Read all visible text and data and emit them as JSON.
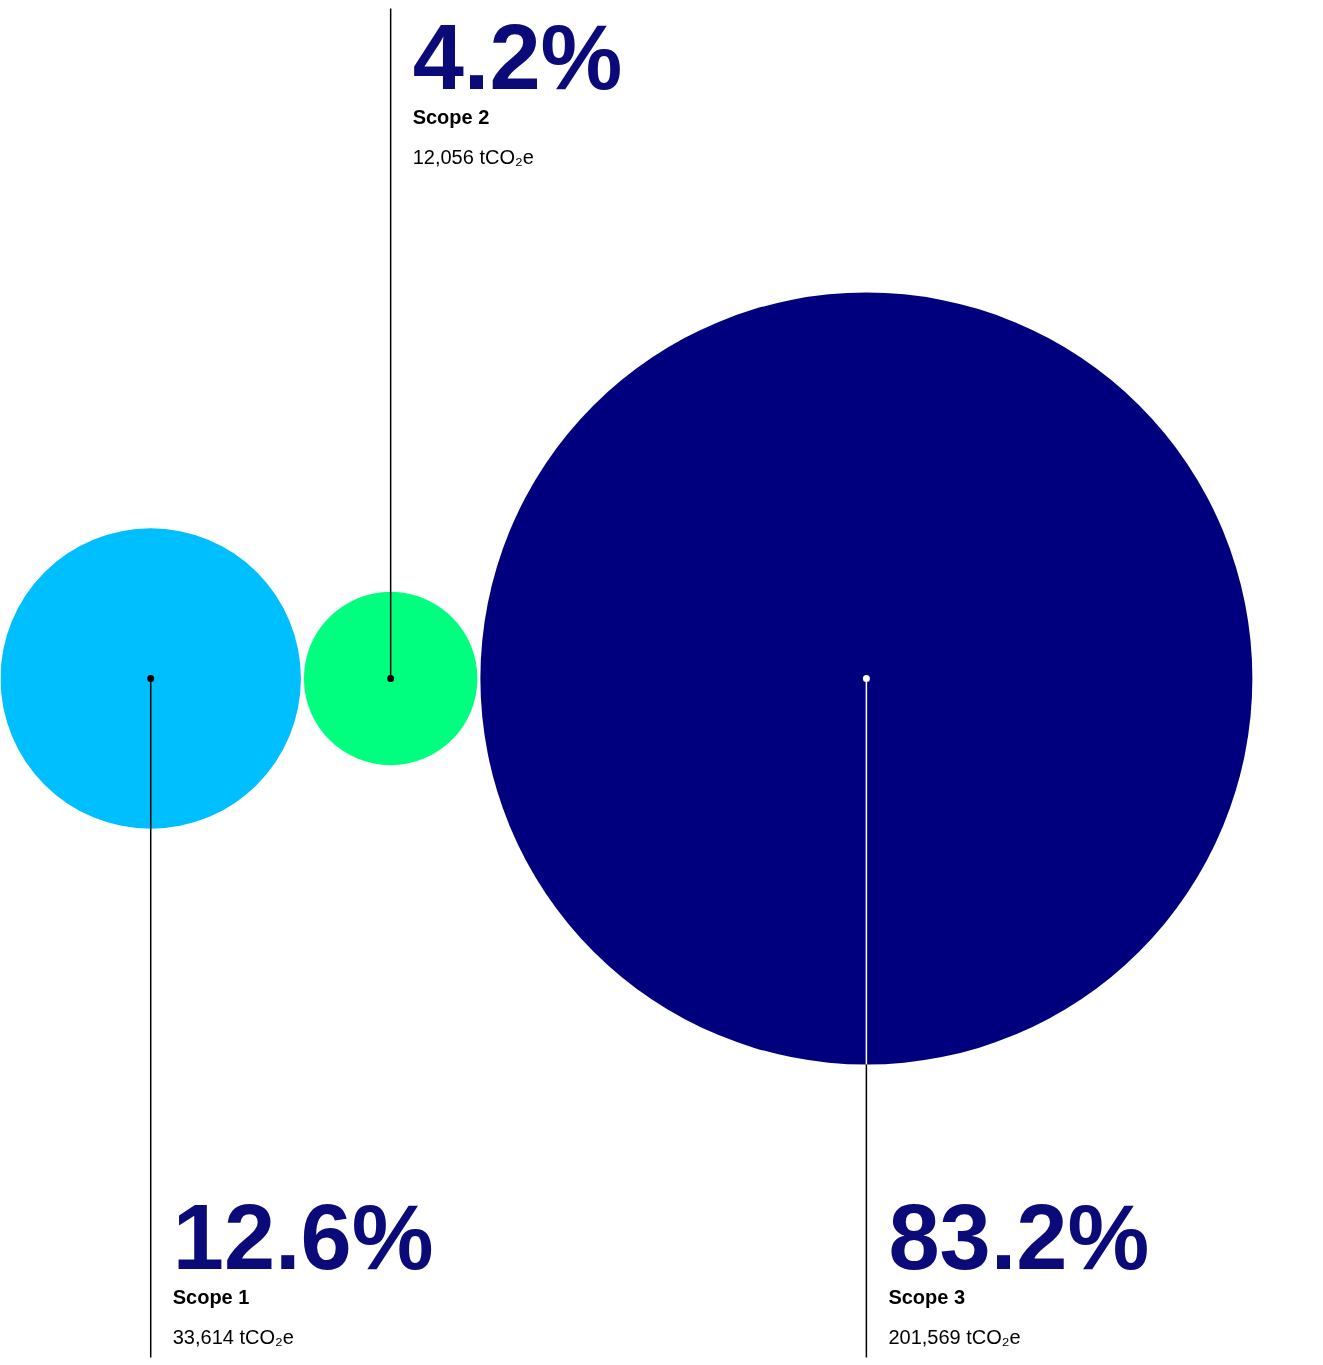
{
  "chart_data": {
    "type": "other",
    "categories": [
      "Scope 1",
      "Scope 2",
      "Scope 3"
    ],
    "values": [
      12.6,
      4.2,
      83.2
    ],
    "value_labels": [
      "12.6%",
      "4.2%",
      "83.2%"
    ],
    "colors": [
      "#00bfff",
      "#00ff7f",
      "#00007f"
    ],
    "annotations": [
      {
        "text": "33,614 tCO₂e",
        "x": "Scope 1"
      },
      {
        "text": "12,056 tCO₂e",
        "x": "Scope 2"
      },
      {
        "text": "201,569 tCO₂e",
        "x": "Scope 3"
      }
    ]
  }
}
